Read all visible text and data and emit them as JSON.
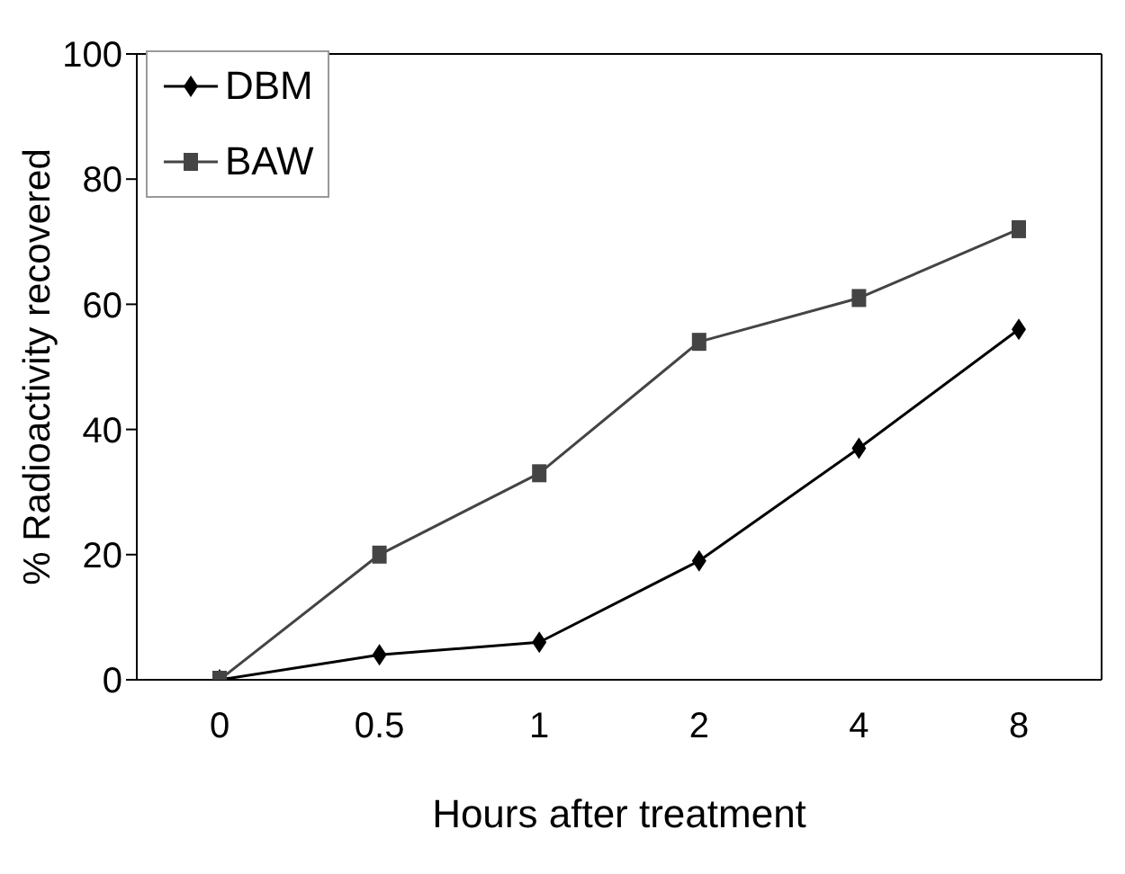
{
  "chart_data": {
    "type": "line",
    "xlabel": "Hours after treatment",
    "ylabel": "% Radioactivity recovered",
    "categories": [
      "0",
      "0.5",
      "1",
      "2",
      "4",
      "8"
    ],
    "series": [
      {
        "name": "DBM",
        "color": "#000000",
        "marker": "diamond",
        "line_style": "solid",
        "values": [
          0,
          4,
          6,
          19,
          37,
          56
        ]
      },
      {
        "name": "BAW",
        "color": "#444444",
        "marker": "square",
        "line_style": "solid",
        "values": [
          0,
          20,
          33,
          54,
          61,
          72
        ]
      }
    ],
    "ylim": [
      0,
      100
    ],
    "yticks": [
      0,
      20,
      40,
      60,
      80,
      100
    ],
    "legend": "top left"
  }
}
